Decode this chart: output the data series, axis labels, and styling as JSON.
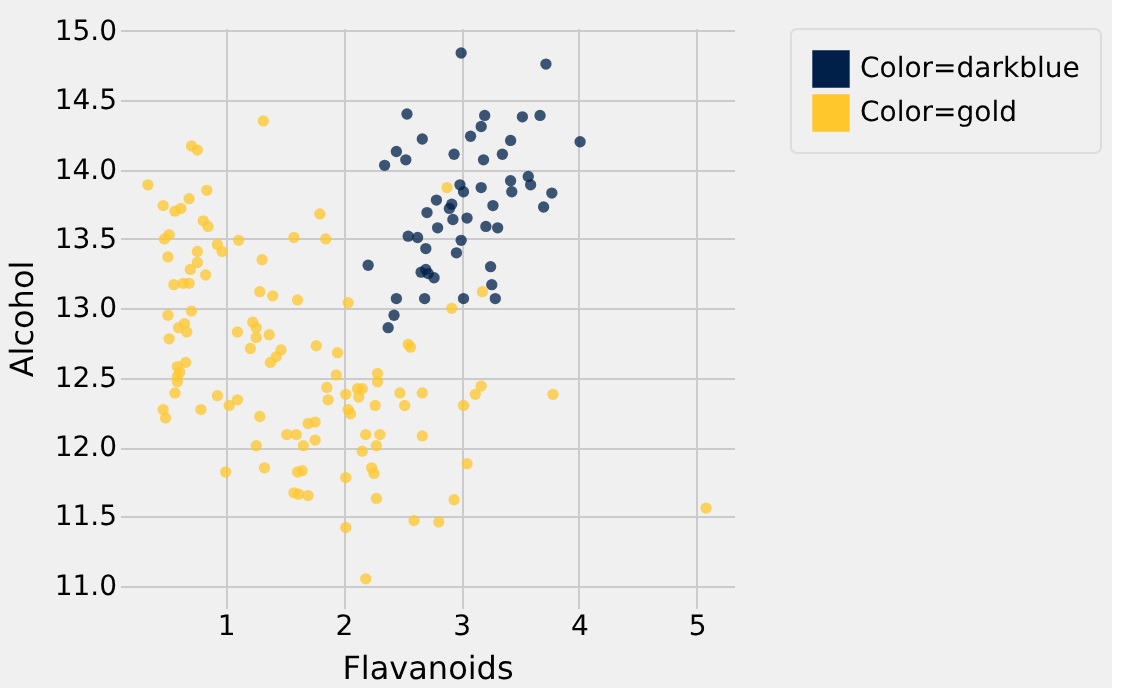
{
  "chart_data": {
    "type": "scatter",
    "xlabel": "Flavanoids",
    "ylabel": "Alcohol",
    "xlim": [
      0.103,
      5.317
    ],
    "ylim": [
      10.84,
      15.02
    ],
    "xticks": [
      1,
      2,
      3,
      4,
      5
    ],
    "yticks": [
      {
        "value": 11,
        "label": "11.0"
      },
      {
        "value": 11.5,
        "label": "11.5"
      },
      {
        "value": 12,
        "label": "12.0"
      },
      {
        "value": 12.5,
        "label": "12.5"
      },
      {
        "value": 13,
        "label": "13.0"
      },
      {
        "value": 13.5,
        "label": "13.5"
      },
      {
        "value": 14,
        "label": "14.0"
      },
      {
        "value": 14.5,
        "label": "14.5"
      },
      {
        "value": 15,
        "label": "15.0"
      }
    ],
    "grid": true,
    "legend": "top right",
    "marker": "circle",
    "series": [
      {
        "name": "Color=darkblue",
        "color": "#00204a",
        "x": [
          2.21,
          2.35,
          2.45,
          2.54,
          2.53,
          2.67,
          2.71,
          2.55,
          2.63,
          2.7,
          2.66,
          2.7,
          2.77,
          2.45,
          2.43,
          2.38,
          3.0,
          3.72,
          3.2,
          3.17,
          3.52,
          3.67,
          3.08,
          3.42,
          4.01,
          2.94,
          3.19,
          3.35,
          2.99,
          3.02,
          3.17,
          3.42,
          3.43,
          3.57,
          3.59,
          3.77,
          3.7,
          3.27,
          2.79,
          2.92,
          2.9,
          2.93,
          2.8,
          3.05,
          3.21,
          3.31,
          3.0,
          2.96,
          2.72,
          3.25,
          3.26,
          3.29,
          3.02,
          2.69
        ],
        "values": [
          13.31,
          14.03,
          14.13,
          14.4,
          14.07,
          14.22,
          13.69,
          13.52,
          13.51,
          13.43,
          13.26,
          13.28,
          13.22,
          13.07,
          12.95,
          12.86,
          14.84,
          14.76,
          14.39,
          14.31,
          14.38,
          14.39,
          14.24,
          14.21,
          14.2,
          14.11,
          14.07,
          14.11,
          13.89,
          13.84,
          13.87,
          13.92,
          13.84,
          13.95,
          13.89,
          13.83,
          13.73,
          13.74,
          13.78,
          13.75,
          13.72,
          13.64,
          13.58,
          13.65,
          13.59,
          13.58,
          13.49,
          13.4,
          13.25,
          13.3,
          13.17,
          13.07,
          13.07,
          13.07
        ]
      },
      {
        "name": "Color=gold",
        "color": "#ffc72c",
        "x": [
          0.34,
          0.47,
          0.57,
          0.62,
          0.69,
          0.84,
          0.71,
          0.76,
          0.81,
          0.85,
          0.52,
          0.48,
          0.76,
          0.97,
          0.93,
          0.51,
          0.76,
          0.7,
          0.83,
          0.56,
          0.64,
          0.69,
          1.11,
          1.32,
          1.31,
          1.29,
          1.4,
          1.61,
          1.58,
          1.8,
          1.85,
          2.04,
          0.51,
          0.71,
          0.65,
          1.23,
          0.52,
          0.6,
          0.67,
          0.66,
          0.59,
          0.61,
          0.59,
          0.59,
          0.57,
          0.47,
          0.49,
          0.79,
          0.93,
          1.03,
          1.1,
          1.0,
          1.1,
          1.26,
          1.26,
          1.21,
          1.37,
          1.43,
          1.47,
          1.38,
          1.29,
          1.26,
          1.33,
          1.52,
          1.6,
          1.66,
          1.7,
          1.76,
          1.76,
          1.77,
          1.95,
          1.94,
          1.86,
          1.87,
          2.02,
          2.04,
          2.06,
          2.12,
          2.16,
          2.13,
          2.27,
          2.29,
          2.29,
          2.48,
          2.52,
          2.67,
          2.67,
          2.55,
          2.57,
          2.19,
          2.31,
          2.16,
          2.28,
          2.24,
          2.26,
          2.28,
          2.6,
          2.02,
          2.02,
          1.61,
          1.65,
          1.58,
          1.62,
          1.7,
          2.19,
          2.92,
          3.02,
          3.12,
          3.17,
          3.78,
          3.05,
          2.94,
          2.81,
          5.08,
          2.88,
          3.18
        ],
        "values": [
          13.89,
          13.74,
          13.7,
          13.72,
          13.79,
          13.85,
          14.17,
          14.14,
          13.63,
          13.59,
          13.53,
          13.5,
          13.41,
          13.41,
          13.46,
          13.37,
          13.33,
          13.28,
          13.24,
          13.17,
          13.18,
          13.18,
          13.49,
          14.35,
          13.35,
          13.12,
          13.09,
          13.06,
          13.51,
          13.68,
          13.5,
          13.04,
          12.95,
          12.98,
          12.89,
          12.9,
          12.78,
          12.86,
          12.83,
          12.61,
          12.58,
          12.54,
          12.51,
          12.47,
          12.39,
          12.27,
          12.21,
          12.27,
          12.37,
          12.3,
          12.34,
          11.82,
          12.83,
          12.86,
          12.79,
          12.71,
          12.81,
          12.65,
          12.7,
          12.61,
          12.22,
          12.01,
          11.85,
          12.09,
          12.09,
          12.01,
          12.17,
          12.18,
          12.05,
          12.73,
          12.68,
          12.52,
          12.43,
          12.34,
          12.38,
          12.27,
          12.24,
          12.42,
          12.42,
          12.36,
          12.3,
          12.53,
          12.47,
          12.39,
          12.3,
          12.39,
          12.08,
          12.74,
          12.72,
          12.09,
          12.09,
          11.97,
          12.01,
          11.85,
          11.81,
          11.63,
          11.47,
          11.78,
          11.42,
          11.82,
          11.83,
          11.67,
          11.66,
          11.65,
          11.05,
          13.0,
          12.3,
          12.38,
          12.44,
          12.38,
          11.88,
          11.62,
          11.46,
          11.56,
          13.87,
          13.12
        ]
      }
    ]
  }
}
